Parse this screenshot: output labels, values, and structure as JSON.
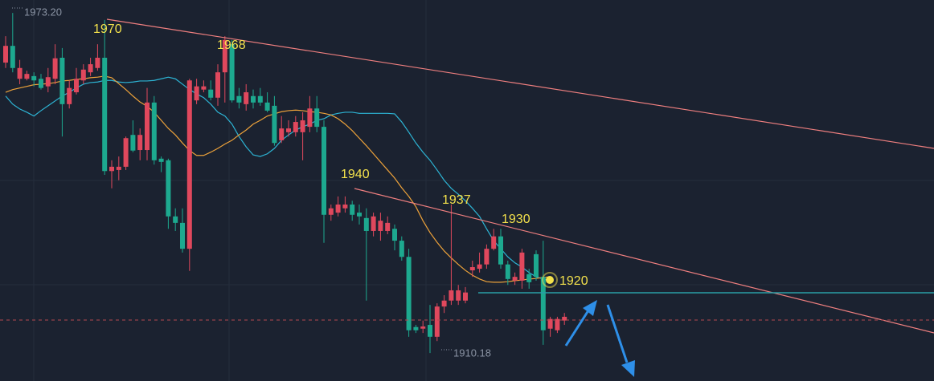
{
  "chart_data": {
    "type": "candlestick",
    "ylim": [
      1905.0,
      1975.6
    ],
    "up_color": "#e0485d",
    "down_color": "#1da98f",
    "open": [
      1964.0,
      1967.1,
      1961.0,
      1961.0,
      1961.5,
      1961.0,
      1959.6,
      1961.0,
      1964.9,
      1956.3,
      1958.5,
      1960.7,
      1962.2,
      1963.0,
      1964.9,
      1943.9,
      1944.1,
      1944.7,
      1950.6,
      1947.8,
      1947.8,
      1956.6,
      1946.2,
      1945.9,
      1935.5,
      1934.3,
      1929.5,
      1957.0,
      1959.0,
      1959.0,
      1957.5,
      1962.2,
      1967.4,
      1957.8,
      1956.3,
      1957.8,
      1957.8,
      1956.6,
      1956.0,
      1949.6,
      1951.1,
      1951.1,
      1951.1,
      1952.1,
      1955.5,
      1952.1,
      1935.8,
      1936.2,
      1937.0,
      1937.7,
      1936.2,
      1935.2,
      1932.8,
      1932.8,
      1932.8,
      1933.2,
      1931.0,
      1928.0,
      1915.0,
      1914.7,
      1915.4,
      1913.2,
      1918.8,
      1919.9,
      1919.9,
      1919.9,
      1925.5,
      1925.8,
      1926.6,
      1929.5,
      1931.8,
      1926.6,
      1923.6,
      1923.6,
      1924.8,
      1928.5,
      1924.3,
      1914.7,
      1914.4,
      1916.2
    ],
    "high": [
      1968.9,
      1973.2,
      1964.5,
      1962.5,
      1962.2,
      1961.9,
      1963.0,
      1967.4,
      1966.7,
      1960.7,
      1963.0,
      1963.7,
      1964.9,
      1967.4,
      1971.9,
      1945.9,
      1946.6,
      1950.3,
      1953.3,
      1951.8,
      1959.3,
      1957.8,
      1946.6,
      1946.2,
      1937.0,
      1937.0,
      1961.0,
      1961.0,
      1960.7,
      1960.7,
      1963.7,
      1968.9,
      1968.2,
      1959.3,
      1960.0,
      1959.0,
      1959.3,
      1958.5,
      1957.8,
      1954.1,
      1953.3,
      1954.1,
      1954.8,
      1957.8,
      1957.8,
      1953.3,
      1937.7,
      1939.2,
      1939.2,
      1938.4,
      1937.7,
      1937.0,
      1936.2,
      1936.2,
      1935.5,
      1934.0,
      1931.8,
      1929.5,
      1915.4,
      1916.2,
      1919.1,
      1919.4,
      1920.9,
      1937.7,
      1922.8,
      1922.4,
      1927.3,
      1928.8,
      1930.3,
      1933.2,
      1933.2,
      1927.3,
      1925.1,
      1929.5,
      1925.8,
      1929.2,
      1931.0,
      1916.9,
      1916.9,
      1917.6
    ],
    "low": [
      1963.0,
      1962.2,
      1960.0,
      1960.7,
      1959.6,
      1959.0,
      1958.5,
      1960.0,
      1950.3,
      1955.5,
      1958.1,
      1960.0,
      1961.5,
      1962.5,
      1943.2,
      1940.7,
      1942.2,
      1944.1,
      1947.4,
      1945.9,
      1945.9,
      1945.1,
      1943.7,
      1933.2,
      1932.8,
      1928.8,
      1925.4,
      1956.3,
      1958.5,
      1957.0,
      1956.0,
      1956.6,
      1956.6,
      1955.5,
      1955.1,
      1955.5,
      1956.0,
      1954.8,
      1948.6,
      1949.1,
      1950.3,
      1950.3,
      1945.9,
      1951.1,
      1951.1,
      1930.6,
      1934.7,
      1935.5,
      1936.2,
      1934.7,
      1934.0,
      1919.9,
      1931.8,
      1931.0,
      1932.2,
      1929.2,
      1927.3,
      1913.2,
      1913.9,
      1913.9,
      1910.18,
      1912.4,
      1917.6,
      1919.1,
      1919.1,
      1919.4,
      1924.3,
      1925.1,
      1925.8,
      1929.2,
      1925.8,
      1922.8,
      1922.8,
      1922.1,
      1922.1,
      1923.6,
      1911.7,
      1913.2,
      1913.9,
      1915.4
    ],
    "close": [
      1967.1,
      1963.0,
      1963.0,
      1961.9,
      1960.7,
      1959.3,
      1961.3,
      1964.8,
      1956.3,
      1959.3,
      1961.0,
      1962.7,
      1963.7,
      1964.9,
      1943.9,
      1944.7,
      1944.7,
      1950.0,
      1947.7,
      1950.6,
      1956.6,
      1945.9,
      1945.6,
      1935.5,
      1934.3,
      1929.5,
      1960.7,
      1959.6,
      1959.6,
      1957.5,
      1962.2,
      1968.2,
      1957.0,
      1956.6,
      1958.5,
      1956.6,
      1956.6,
      1955.1,
      1949.1,
      1951.8,
      1951.8,
      1953.0,
      1953.3,
      1955.5,
      1952.1,
      1935.8,
      1937.0,
      1937.7,
      1937.7,
      1935.8,
      1935.5,
      1932.8,
      1935.5,
      1934.7,
      1934.3,
      1931.0,
      1928.0,
      1914.4,
      1914.4,
      1915.1,
      1913.2,
      1918.8,
      1919.9,
      1921.8,
      1921.8,
      1921.4,
      1926.1,
      1926.6,
      1929.5,
      1931.8,
      1926.6,
      1923.9,
      1924.3,
      1928.8,
      1923.3,
      1924.3,
      1914.4,
      1916.5,
      1916.5,
      1916.9
    ],
    "lines": [
      {
        "color": "#2db4d4",
        "values": [
          1957.8,
          1956.3,
          1955.4,
          1954.8,
          1954.1,
          1955.1,
          1956.0,
          1956.9,
          1957.8,
          1958.5,
          1959.3,
          1960.0,
          1960.3,
          1960.4,
          1960.7,
          1960.7,
          1960.4,
          1960.3,
          1960.4,
          1960.6,
          1960.6,
          1960.7,
          1961.0,
          1961.3,
          1961.0,
          1960.0,
          1959.0,
          1958.2,
          1957.5,
          1956.3,
          1954.8,
          1954.1,
          1952.6,
          1950.3,
          1948.4,
          1946.9,
          1946.6,
          1947.1,
          1948.1,
          1949.6,
          1950.6,
          1951.5,
          1952.1,
          1952.6,
          1953.3,
          1953.6,
          1954.3,
          1954.6,
          1954.8,
          1954.8,
          1954.6,
          1954.6,
          1954.6,
          1954.6,
          1954.6,
          1954.5,
          1953.0,
          1951.1,
          1949.1,
          1947.4,
          1945.9,
          1944.1,
          1942.2,
          1940.7,
          1939.6,
          1938.4,
          1937.0,
          1935.5,
          1933.2,
          1931.0,
          1929.5,
          1928.0,
          1926.9,
          1926.1,
          1925.1,
          1924.3,
          1923.9,
          1923.6,
          null,
          null
        ]
      },
      {
        "color": "#eda23a",
        "values": [
          1958.5,
          1959.0,
          1959.3,
          1959.6,
          1959.9,
          1960.0,
          1960.1,
          1960.3,
          1960.6,
          1960.7,
          1960.9,
          1961.0,
          1961.2,
          1961.3,
          1961.5,
          1961.2,
          1960.1,
          1959.0,
          1957.8,
          1956.7,
          1955.9,
          1954.8,
          1953.3,
          1951.8,
          1950.6,
          1949.1,
          1947.7,
          1946.8,
          1946.8,
          1947.4,
          1948.1,
          1948.9,
          1949.6,
          1950.6,
          1951.5,
          1952.6,
          1953.3,
          1954.1,
          1954.5,
          1954.9,
          1955.1,
          1955.2,
          1955.1,
          1954.9,
          1954.8,
          1954.6,
          1954.3,
          1953.6,
          1952.6,
          1951.4,
          1950.0,
          1948.6,
          1947.1,
          1945.6,
          1944.1,
          1942.6,
          1940.8,
          1939.2,
          1937.3,
          1934.7,
          1932.5,
          1930.7,
          1929.1,
          1927.8,
          1926.6,
          1925.5,
          1924.6,
          1923.9,
          1923.4,
          1923.3,
          1923.3,
          1923.4,
          1923.6,
          1923.7,
          1923.9,
          1924.0,
          1924.2,
          1924.3,
          null,
          null
        ]
      }
    ],
    "high_label": "1973.20",
    "low_label": "1910.18",
    "annotations": [
      "1970",
      "1968",
      "1940",
      "1937",
      "1930",
      "1920"
    ]
  }
}
